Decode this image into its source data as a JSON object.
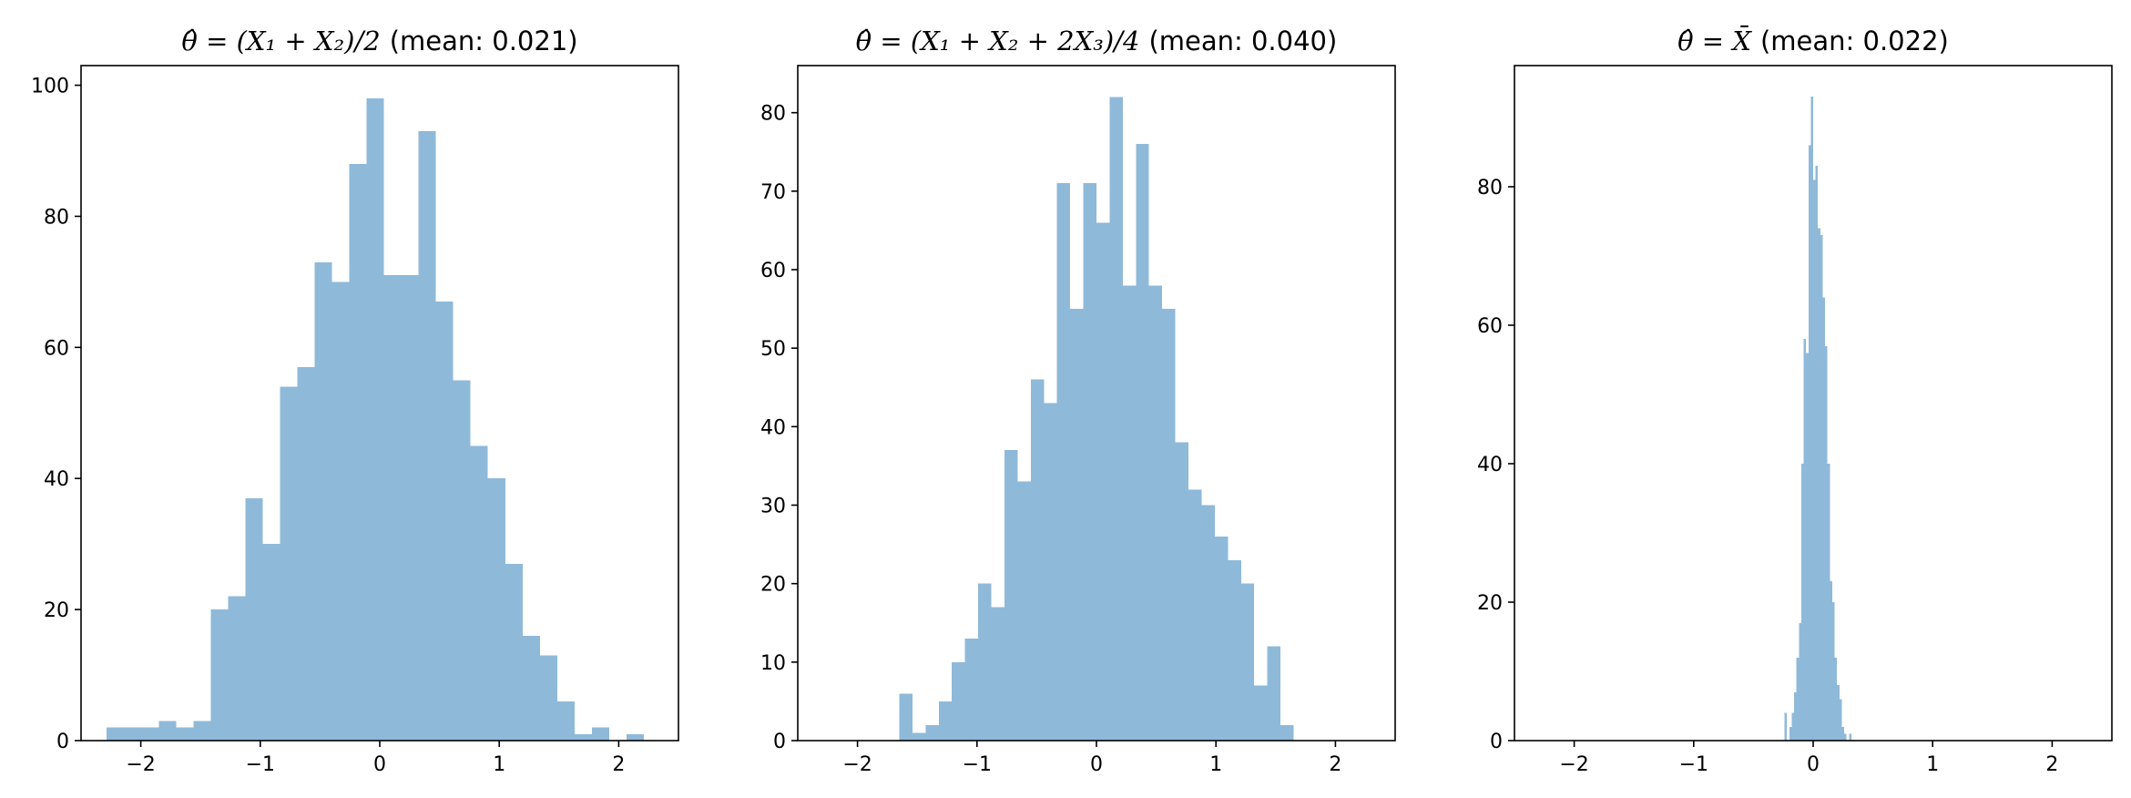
{
  "chart_data": [
    {
      "type": "histogram",
      "title_math": "θ̂ = (X₁ + X₂)/2",
      "title_suffix": "(mean: 0.021)",
      "xlim": [
        -2.5,
        2.5
      ],
      "ylim": [
        0,
        103
      ],
      "xticks": [
        "−2",
        "−1",
        "0",
        "1",
        "2"
      ],
      "yticks": [
        "0",
        "20",
        "40",
        "60",
        "80",
        "100"
      ],
      "bins": [
        {
          "x0": -2.286,
          "x1": -2.14,
          "count": 2
        },
        {
          "x0": -2.14,
          "x1": -1.995,
          "count": 2
        },
        {
          "x0": -1.995,
          "x1": -1.85,
          "count": 2
        },
        {
          "x0": -1.85,
          "x1": -1.705,
          "count": 3
        },
        {
          "x0": -1.705,
          "x1": -1.56,
          "count": 2
        },
        {
          "x0": -1.56,
          "x1": -1.415,
          "count": 3
        },
        {
          "x0": -1.415,
          "x1": -1.27,
          "count": 20
        },
        {
          "x0": -1.27,
          "x1": -1.125,
          "count": 22
        },
        {
          "x0": -1.125,
          "x1": -0.98,
          "count": 37
        },
        {
          "x0": -0.98,
          "x1": -0.835,
          "count": 30
        },
        {
          "x0": -0.835,
          "x1": -0.69,
          "count": 54
        },
        {
          "x0": -0.69,
          "x1": -0.545,
          "count": 57
        },
        {
          "x0": -0.545,
          "x1": -0.4,
          "count": 73
        },
        {
          "x0": -0.4,
          "x1": -0.255,
          "count": 70
        },
        {
          "x0": -0.255,
          "x1": -0.11,
          "count": 88
        },
        {
          "x0": -0.11,
          "x1": 0.035,
          "count": 98
        },
        {
          "x0": 0.035,
          "x1": 0.18,
          "count": 71
        },
        {
          "x0": 0.18,
          "x1": 0.325,
          "count": 71
        },
        {
          "x0": 0.325,
          "x1": 0.47,
          "count": 93
        },
        {
          "x0": 0.47,
          "x1": 0.615,
          "count": 67
        },
        {
          "x0": 0.615,
          "x1": 0.76,
          "count": 55
        },
        {
          "x0": 0.76,
          "x1": 0.905,
          "count": 45
        },
        {
          "x0": 0.905,
          "x1": 1.05,
          "count": 40
        },
        {
          "x0": 1.05,
          "x1": 1.195,
          "count": 27
        },
        {
          "x0": 1.195,
          "x1": 1.34,
          "count": 16
        },
        {
          "x0": 1.34,
          "x1": 1.485,
          "count": 13
        },
        {
          "x0": 1.485,
          "x1": 1.63,
          "count": 6
        },
        {
          "x0": 1.63,
          "x1": 1.775,
          "count": 1
        },
        {
          "x0": 1.775,
          "x1": 1.92,
          "count": 2
        },
        {
          "x0": 1.92,
          "x1": 2.065,
          "count": 0
        },
        {
          "x0": 2.065,
          "x1": 2.21,
          "count": 1
        }
      ]
    },
    {
      "type": "histogram",
      "title_math": "θ̂ = (X₁ + X₂ + 2X₃)/4",
      "title_suffix": "(mean: 0.040)",
      "xlim": [
        -2.5,
        2.5
      ],
      "ylim": [
        0,
        86
      ],
      "xticks": [
        "−2",
        "−1",
        "0",
        "1",
        "2"
      ],
      "yticks": [
        "0",
        "10",
        "20",
        "30",
        "40",
        "50",
        "60",
        "70",
        "80"
      ],
      "bins": [
        {
          "x0": -1.65,
          "x1": -1.54,
          "count": 6
        },
        {
          "x0": -1.54,
          "x1": -1.43,
          "count": 1
        },
        {
          "x0": -1.43,
          "x1": -1.32,
          "count": 2
        },
        {
          "x0": -1.32,
          "x1": -1.21,
          "count": 5
        },
        {
          "x0": -1.21,
          "x1": -1.1,
          "count": 10
        },
        {
          "x0": -1.1,
          "x1": -0.99,
          "count": 13
        },
        {
          "x0": -0.99,
          "x1": -0.88,
          "count": 20
        },
        {
          "x0": -0.88,
          "x1": -0.77,
          "count": 17
        },
        {
          "x0": -0.77,
          "x1": -0.66,
          "count": 37
        },
        {
          "x0": -0.66,
          "x1": -0.55,
          "count": 33
        },
        {
          "x0": -0.55,
          "x1": -0.44,
          "count": 46
        },
        {
          "x0": -0.44,
          "x1": -0.33,
          "count": 43
        },
        {
          "x0": -0.33,
          "x1": -0.22,
          "count": 71
        },
        {
          "x0": -0.22,
          "x1": -0.11,
          "count": 55
        },
        {
          "x0": -0.11,
          "x1": 0.0,
          "count": 71
        },
        {
          "x0": 0.0,
          "x1": 0.11,
          "count": 66
        },
        {
          "x0": 0.11,
          "x1": 0.22,
          "count": 82
        },
        {
          "x0": 0.22,
          "x1": 0.33,
          "count": 58
        },
        {
          "x0": 0.33,
          "x1": 0.44,
          "count": 76
        },
        {
          "x0": 0.44,
          "x1": 0.55,
          "count": 58
        },
        {
          "x0": 0.55,
          "x1": 0.66,
          "count": 55
        },
        {
          "x0": 0.66,
          "x1": 0.77,
          "count": 38
        },
        {
          "x0": 0.77,
          "x1": 0.88,
          "count": 32
        },
        {
          "x0": 0.88,
          "x1": 0.99,
          "count": 30
        },
        {
          "x0": 0.99,
          "x1": 1.1,
          "count": 26
        },
        {
          "x0": 1.1,
          "x1": 1.21,
          "count": 23
        },
        {
          "x0": 1.21,
          "x1": 1.32,
          "count": 20
        },
        {
          "x0": 1.32,
          "x1": 1.43,
          "count": 7
        },
        {
          "x0": 1.43,
          "x1": 1.54,
          "count": 12
        },
        {
          "x0": 1.54,
          "x1": 1.65,
          "count": 2
        }
      ]
    },
    {
      "type": "histogram",
      "title_math": "θ̂ = X̄",
      "title_suffix": "(mean: 0.022)",
      "xlim": [
        -2.5,
        2.5
      ],
      "ylim": [
        0,
        97.5
      ],
      "xticks": [
        "−2",
        "−1",
        "0",
        "1",
        "2"
      ],
      "yticks": [
        "0",
        "20",
        "40",
        "60",
        "80"
      ],
      "bins": [
        {
          "x0": -0.24,
          "x1": -0.22,
          "count": 4
        },
        {
          "x0": -0.22,
          "x1": -0.2,
          "count": 0
        },
        {
          "x0": -0.2,
          "x1": -0.18,
          "count": 2
        },
        {
          "x0": -0.18,
          "x1": -0.16,
          "count": 4
        },
        {
          "x0": -0.16,
          "x1": -0.14,
          "count": 7
        },
        {
          "x0": -0.14,
          "x1": -0.12,
          "count": 12
        },
        {
          "x0": -0.12,
          "x1": -0.1,
          "count": 17
        },
        {
          "x0": -0.1,
          "x1": -0.08,
          "count": 40
        },
        {
          "x0": -0.08,
          "x1": -0.06,
          "count": 58
        },
        {
          "x0": -0.06,
          "x1": -0.04,
          "count": 56
        },
        {
          "x0": -0.04,
          "x1": -0.02,
          "count": 86
        },
        {
          "x0": -0.02,
          "x1": 0.0,
          "count": 93
        },
        {
          "x0": 0.0,
          "x1": 0.02,
          "count": 81
        },
        {
          "x0": 0.02,
          "x1": 0.04,
          "count": 83
        },
        {
          "x0": 0.04,
          "x1": 0.06,
          "count": 74
        },
        {
          "x0": 0.06,
          "x1": 0.08,
          "count": 73
        },
        {
          "x0": 0.08,
          "x1": 0.1,
          "count": 64
        },
        {
          "x0": 0.1,
          "x1": 0.12,
          "count": 57
        },
        {
          "x0": 0.12,
          "x1": 0.14,
          "count": 40
        },
        {
          "x0": 0.14,
          "x1": 0.16,
          "count": 23
        },
        {
          "x0": 0.16,
          "x1": 0.18,
          "count": 20
        },
        {
          "x0": 0.18,
          "x1": 0.2,
          "count": 12
        },
        {
          "x0": 0.2,
          "x1": 0.22,
          "count": 8
        },
        {
          "x0": 0.22,
          "x1": 0.24,
          "count": 6
        },
        {
          "x0": 0.24,
          "x1": 0.26,
          "count": 2
        },
        {
          "x0": 0.26,
          "x1": 0.28,
          "count": 1
        },
        {
          "x0": 0.28,
          "x1": 0.3,
          "count": 0
        },
        {
          "x0": 0.3,
          "x1": 0.32,
          "count": 1
        }
      ]
    }
  ],
  "colors": {
    "bar": "#8fb9d9",
    "axis": "#000000",
    "background": "#ffffff"
  }
}
